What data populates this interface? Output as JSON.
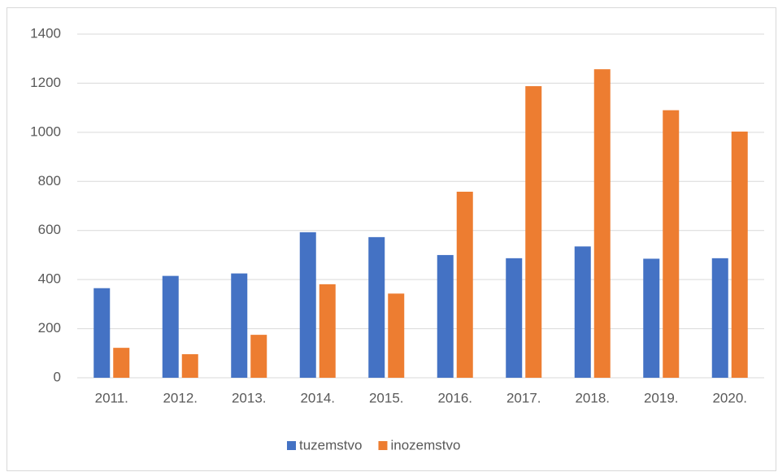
{
  "chart_data": {
    "type": "bar",
    "categories": [
      "2011.",
      "2012.",
      "2013.",
      "2014.",
      "2015.",
      "2016.",
      "2017.",
      "2018.",
      "2019.",
      "2020."
    ],
    "series": [
      {
        "name": "tuzemstvo",
        "color": "#4472c4",
        "values": [
          365,
          415,
          425,
          593,
          573,
          500,
          487,
          535,
          485,
          487
        ]
      },
      {
        "name": "inozemstvo",
        "color": "#ed7d31",
        "values": [
          122,
          96,
          175,
          381,
          343,
          758,
          1188,
          1257,
          1090,
          1003
        ]
      }
    ],
    "ylim": [
      0,
      1400
    ],
    "yticks": [
      0,
      200,
      400,
      600,
      800,
      1000,
      1200,
      1400
    ],
    "grid": true,
    "legend": "bottom"
  }
}
